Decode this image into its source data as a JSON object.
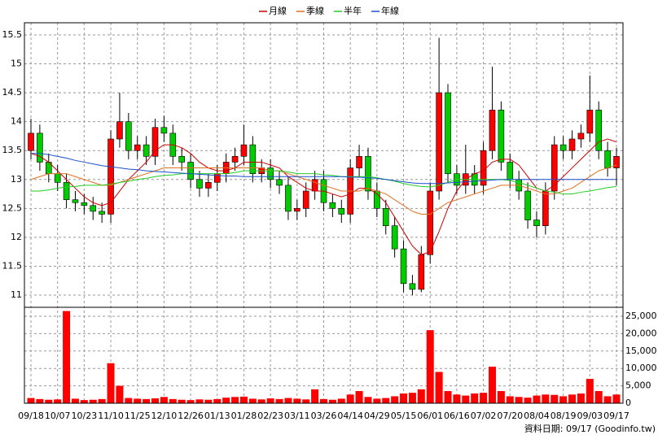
{
  "chart_data": {
    "type": "candlestick",
    "footnote": "資料日期: 09/17  (Goodinfo.tw)",
    "categories": [
      "09/18",
      null,
      null,
      "10/07",
      null,
      null,
      "10/23",
      null,
      null,
      "11/10",
      null,
      null,
      "11/25",
      null,
      null,
      "12/10",
      null,
      null,
      "12/26",
      null,
      null,
      "01/13",
      null,
      null,
      "01/28",
      null,
      null,
      "02/23",
      null,
      null,
      "03/11",
      null,
      null,
      "03/26",
      null,
      null,
      "04/14",
      null,
      null,
      "04/29",
      null,
      null,
      "05/15",
      null,
      null,
      "06/01",
      null,
      null,
      "06/16",
      null,
      null,
      "07/02",
      null,
      null,
      "07/20",
      null,
      null,
      "08/04",
      null,
      null,
      "08/19",
      null,
      null,
      "09/03",
      null,
      null,
      "09/17"
    ],
    "open": [
      13.5,
      13.8,
      13.3,
      13.1,
      12.95,
      12.65,
      12.6,
      12.55,
      12.45,
      12.4,
      13.7,
      14.0,
      13.5,
      13.6,
      13.4,
      13.9,
      13.8,
      13.4,
      13.3,
      13.0,
      12.85,
      12.95,
      13.1,
      13.3,
      13.4,
      13.6,
      13.1,
      13.2,
      13.0,
      12.9,
      12.45,
      12.5,
      12.8,
      13.0,
      12.6,
      12.5,
      12.4,
      13.2,
      13.4,
      12.8,
      12.5,
      12.2,
      11.8,
      11.2,
      11.1,
      11.7,
      12.8,
      14.5,
      13.1,
      12.9,
      13.1,
      12.9,
      13.5,
      14.2,
      13.3,
      13.0,
      12.8,
      12.3,
      12.2,
      12.8,
      13.6,
      13.5,
      13.7,
      13.8,
      14.2,
      13.5,
      13.2
    ],
    "high": [
      14.05,
      13.95,
      13.45,
      13.25,
      13.1,
      12.8,
      12.75,
      12.7,
      12.6,
      13.85,
      14.5,
      14.15,
      13.75,
      13.75,
      14.05,
      14.1,
      13.95,
      13.55,
      13.45,
      13.15,
      13.1,
      13.25,
      13.45,
      13.55,
      13.95,
      13.75,
      13.35,
      13.35,
      13.15,
      13.05,
      12.65,
      12.95,
      13.15,
      13.15,
      12.75,
      12.65,
      13.35,
      13.6,
      13.55,
      12.95,
      12.65,
      12.35,
      11.95,
      11.35,
      11.85,
      12.95,
      15.45,
      14.65,
      13.25,
      13.6,
      13.25,
      13.65,
      14.95,
      14.35,
      13.45,
      13.15,
      12.95,
      12.45,
      12.95,
      13.75,
      13.75,
      13.85,
      13.95,
      14.8,
      14.35,
      13.65,
      13.55
    ],
    "low": [
      13.35,
      13.15,
      12.95,
      12.8,
      12.5,
      12.45,
      12.4,
      12.3,
      12.25,
      12.25,
      13.55,
      13.35,
      13.35,
      13.25,
      13.25,
      13.65,
      13.25,
      13.15,
      12.85,
      12.7,
      12.7,
      12.8,
      12.95,
      13.15,
      13.25,
      12.95,
      12.95,
      12.85,
      12.75,
      12.3,
      12.3,
      12.35,
      12.65,
      12.45,
      12.35,
      12.25,
      12.25,
      13.05,
      12.65,
      12.35,
      12.05,
      11.65,
      11.05,
      11.0,
      11.05,
      11.55,
      12.65,
      12.95,
      12.75,
      12.75,
      12.75,
      12.75,
      13.35,
      13.15,
      12.85,
      12.65,
      12.15,
      12.0,
      12.05,
      12.65,
      13.35,
      13.35,
      13.55,
      13.65,
      13.35,
      13.05,
      12.9
    ],
    "close": [
      13.8,
      13.3,
      13.1,
      12.95,
      12.65,
      12.6,
      12.55,
      12.45,
      12.4,
      13.7,
      14.0,
      13.5,
      13.6,
      13.4,
      13.9,
      13.8,
      13.4,
      13.3,
      13.0,
      12.85,
      12.95,
      13.1,
      13.3,
      13.4,
      13.6,
      13.1,
      13.2,
      13.0,
      12.9,
      12.45,
      12.5,
      12.8,
      13.0,
      12.6,
      12.5,
      12.4,
      13.2,
      13.4,
      12.8,
      12.5,
      12.2,
      11.8,
      11.2,
      11.1,
      11.7,
      12.8,
      14.5,
      13.1,
      12.9,
      13.1,
      12.9,
      13.5,
      14.2,
      13.3,
      13.0,
      12.8,
      12.3,
      12.2,
      12.8,
      13.6,
      13.5,
      13.7,
      13.8,
      14.2,
      13.5,
      13.2,
      13.4
    ],
    "up_color": "#ff0000",
    "down_color": "#00cc00",
    "series": [
      {
        "name": "月線",
        "color": "#cc0000",
        "values": [
          13.45,
          13.4,
          13.3,
          13.15,
          13.0,
          12.85,
          12.7,
          12.6,
          12.55,
          12.6,
          12.8,
          13.0,
          13.15,
          13.3,
          13.5,
          13.6,
          13.6,
          13.55,
          13.45,
          13.3,
          13.2,
          13.15,
          13.15,
          13.2,
          13.3,
          13.3,
          13.3,
          13.25,
          13.2,
          13.05,
          12.95,
          12.85,
          12.8,
          12.8,
          12.75,
          12.7,
          12.75,
          12.85,
          12.85,
          12.75,
          12.6,
          12.35,
          12.1,
          11.85,
          11.7,
          11.75,
          12.1,
          12.5,
          12.8,
          13.0,
          13.1,
          13.15,
          13.3,
          13.35,
          13.35,
          13.25,
          13.05,
          12.85,
          12.8,
          12.9,
          13.05,
          13.2,
          13.35,
          13.5,
          13.65,
          13.7,
          13.65
        ]
      },
      {
        "name": "季線",
        "color": "#e07020",
        "values": [
          13.0,
          13.05,
          13.1,
          13.1,
          13.1,
          13.05,
          13.0,
          12.95,
          12.9,
          12.9,
          12.95,
          13.0,
          13.05,
          13.1,
          13.15,
          13.2,
          13.2,
          13.2,
          13.2,
          13.2,
          13.2,
          13.2,
          13.2,
          13.2,
          13.2,
          13.2,
          13.2,
          13.15,
          13.15,
          13.1,
          13.05,
          13.0,
          12.95,
          12.9,
          12.85,
          12.8,
          12.8,
          12.8,
          12.85,
          12.8,
          12.75,
          12.65,
          12.55,
          12.45,
          12.4,
          12.4,
          12.5,
          12.6,
          12.65,
          12.7,
          12.75,
          12.8,
          12.85,
          12.9,
          12.9,
          12.9,
          12.85,
          12.8,
          12.75,
          12.75,
          12.8,
          12.85,
          12.95,
          13.05,
          13.15,
          13.2,
          13.25
        ]
      },
      {
        "name": "半年",
        "color": "#22cc22",
        "values": [
          12.8,
          12.8,
          12.82,
          12.85,
          12.87,
          12.88,
          12.9,
          12.9,
          12.9,
          12.92,
          12.95,
          12.97,
          13.0,
          13.02,
          13.05,
          13.07,
          13.08,
          13.1,
          13.1,
          13.1,
          13.1,
          13.1,
          13.1,
          13.12,
          13.15,
          13.15,
          13.15,
          13.15,
          13.15,
          13.13,
          13.1,
          13.1,
          13.1,
          13.08,
          13.07,
          13.05,
          13.05,
          13.05,
          13.05,
          13.03,
          13.0,
          12.97,
          12.93,
          12.9,
          12.88,
          12.87,
          12.9,
          12.95,
          13.0,
          13.0,
          13.0,
          13.0,
          13.0,
          13.0,
          12.98,
          12.95,
          12.9,
          12.85,
          12.8,
          12.78,
          12.75,
          12.75,
          12.78,
          12.8,
          12.83,
          12.86,
          12.88
        ]
      },
      {
        "name": "年線",
        "color": "#1a4fcc",
        "values": [
          13.45,
          13.45,
          13.43,
          13.4,
          13.37,
          13.33,
          13.3,
          13.27,
          13.24,
          13.22,
          13.2,
          13.18,
          13.17,
          13.15,
          13.14,
          13.13,
          13.12,
          13.11,
          13.1,
          13.09,
          13.08,
          13.07,
          13.06,
          13.06,
          13.05,
          13.05,
          13.05,
          13.05,
          13.05,
          13.05,
          13.05,
          13.05,
          13.05,
          13.05,
          13.05,
          13.05,
          13.04,
          13.04,
          13.03,
          13.02,
          13.0,
          12.98,
          12.96,
          12.94,
          12.93,
          12.93,
          12.93,
          12.94,
          12.95,
          12.96,
          12.97,
          12.98,
          12.99,
          13.0,
          13.0,
          13.0,
          13.0,
          13.0,
          13.0,
          13.0,
          13.0,
          13.0,
          13.0,
          13.0,
          13.0,
          13.0,
          13.0
        ]
      }
    ],
    "ylim": [
      10.79,
      15.71
    ],
    "yticks": [
      11,
      11.5,
      12,
      12.5,
      13,
      13.5,
      14,
      14.5,
      15,
      15.5
    ],
    "grid": true,
    "volume": {
      "color": "#ff0000",
      "values": [
        1500,
        1200,
        1000,
        1100,
        26500,
        1300,
        900,
        1000,
        1200,
        11500,
        5000,
        1500,
        1300,
        1200,
        1400,
        1800,
        1200,
        1000,
        900,
        1100,
        1000,
        1200,
        1600,
        1800,
        1900,
        1300,
        1100,
        1400,
        1200,
        1500,
        1300,
        1100,
        4000,
        1200,
        1000,
        1300,
        2500,
        3500,
        1800,
        1300,
        1500,
        2000,
        2800,
        3000,
        4000,
        21000,
        9000,
        3500,
        2500,
        2200,
        2800,
        3000,
        10500,
        3500,
        2000,
        1800,
        1600,
        2200,
        2500,
        2400,
        2000,
        2500,
        2800,
        7000,
        3500,
        2000,
        2500
      ],
      "ylim": [
        0,
        27570
      ],
      "yticks": [
        0,
        {
          "value": 5000,
          "label": "5,000"
        },
        {
          "value": 10000,
          "label": "10,000"
        },
        {
          "value": 15000,
          "label": "15,000"
        },
        {
          "value": 20000,
          "label": "20,000"
        },
        {
          "value": 25000,
          "label": "25,000"
        }
      ]
    }
  }
}
